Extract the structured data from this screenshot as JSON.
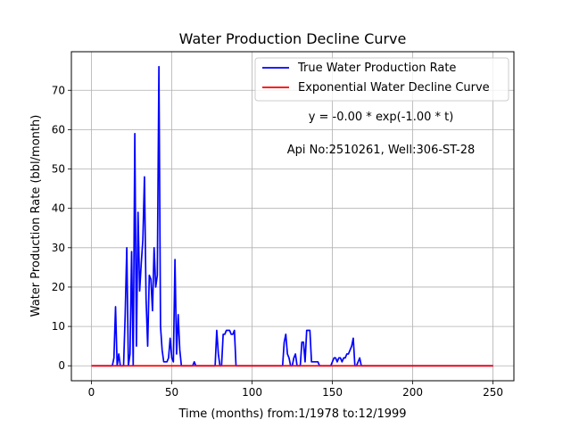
{
  "chart_data": {
    "type": "line",
    "title": "Water Production Decline Curve",
    "xlabel": "Time (months) from:1/1978 to:12/1999",
    "ylabel": "Water Production Rate (bbl/month)",
    "xlim": [
      -12.5,
      263
    ],
    "ylim": [
      -3.8,
      79.8
    ],
    "xticks": [
      0,
      50,
      100,
      150,
      200,
      250
    ],
    "yticks": [
      0,
      10,
      20,
      30,
      40,
      50,
      60,
      70
    ],
    "grid": true,
    "legend_position": "top-right",
    "annotations": [
      {
        "text": "y = -0.00 * exp(-1.00 * t)",
        "x": 180,
        "y": 62
      },
      {
        "text": "Api No:2510261, Well:306-ST-28",
        "x": 180,
        "y": 54
      }
    ],
    "series": [
      {
        "name": "True Water Production Rate",
        "color": "#0000ff",
        "x": [
          0,
          13,
          14,
          15,
          16,
          17,
          18,
          19,
          20,
          21,
          22,
          23,
          24,
          25,
          26,
          27,
          28,
          29,
          30,
          31,
          32,
          33,
          34,
          35,
          36,
          37,
          38,
          39,
          40,
          41,
          42,
          43,
          44,
          45,
          46,
          47,
          48,
          49,
          50,
          51,
          52,
          53,
          54,
          55,
          56,
          57,
          58,
          59,
          60,
          61,
          62,
          63,
          64,
          65,
          66,
          67,
          68,
          69,
          70,
          71,
          72,
          73,
          74,
          75,
          76,
          77,
          78,
          79,
          80,
          81,
          82,
          83,
          84,
          85,
          86,
          87,
          88,
          89,
          90,
          100,
          110,
          117,
          118,
          119,
          120,
          121,
          122,
          123,
          124,
          125,
          126,
          127,
          128,
          129,
          130,
          131,
          132,
          133,
          134,
          135,
          136,
          137,
          138,
          139,
          140,
          141,
          142,
          143,
          144,
          145,
          146,
          147,
          148,
          149,
          150,
          151,
          152,
          153,
          154,
          155,
          156,
          157,
          158,
          159,
          160,
          161,
          162,
          163,
          164,
          165,
          166,
          167,
          168,
          169,
          170,
          180,
          200,
          250
        ],
        "values": [
          0,
          0,
          2,
          15,
          0,
          3,
          0,
          0,
          0,
          13,
          30,
          0,
          3,
          29,
          0,
          59,
          5,
          39,
          19,
          26,
          32,
          48,
          17,
          5,
          23,
          22,
          14,
          30,
          20,
          23,
          76,
          10,
          4,
          1,
          1,
          1,
          2,
          7,
          2,
          1,
          27,
          3,
          13,
          4,
          0,
          0,
          0,
          0,
          0,
          0,
          0,
          0,
          1,
          0,
          0,
          0,
          0,
          0,
          0,
          0,
          0,
          0,
          0,
          0,
          0,
          0,
          9,
          3,
          0,
          0,
          8,
          8,
          9,
          9,
          9,
          8,
          8,
          9,
          0,
          0,
          0,
          0,
          0,
          0,
          6,
          8,
          3,
          2,
          0,
          0,
          2,
          3,
          0,
          0,
          0,
          6,
          6,
          1,
          9,
          9,
          9,
          1,
          1,
          1,
          1,
          1,
          0,
          0,
          0,
          0,
          0,
          0,
          0,
          0,
          1,
          2,
          2,
          1,
          2,
          2,
          1,
          2,
          2,
          3,
          3,
          4,
          5,
          7,
          0,
          0,
          1,
          2,
          0,
          0,
          0,
          0,
          0,
          0
        ]
      },
      {
        "name": "Exponential Water Decline Curve",
        "color": "#ff0000",
        "x": [
          0,
          250
        ],
        "values": [
          0,
          0
        ]
      }
    ]
  }
}
